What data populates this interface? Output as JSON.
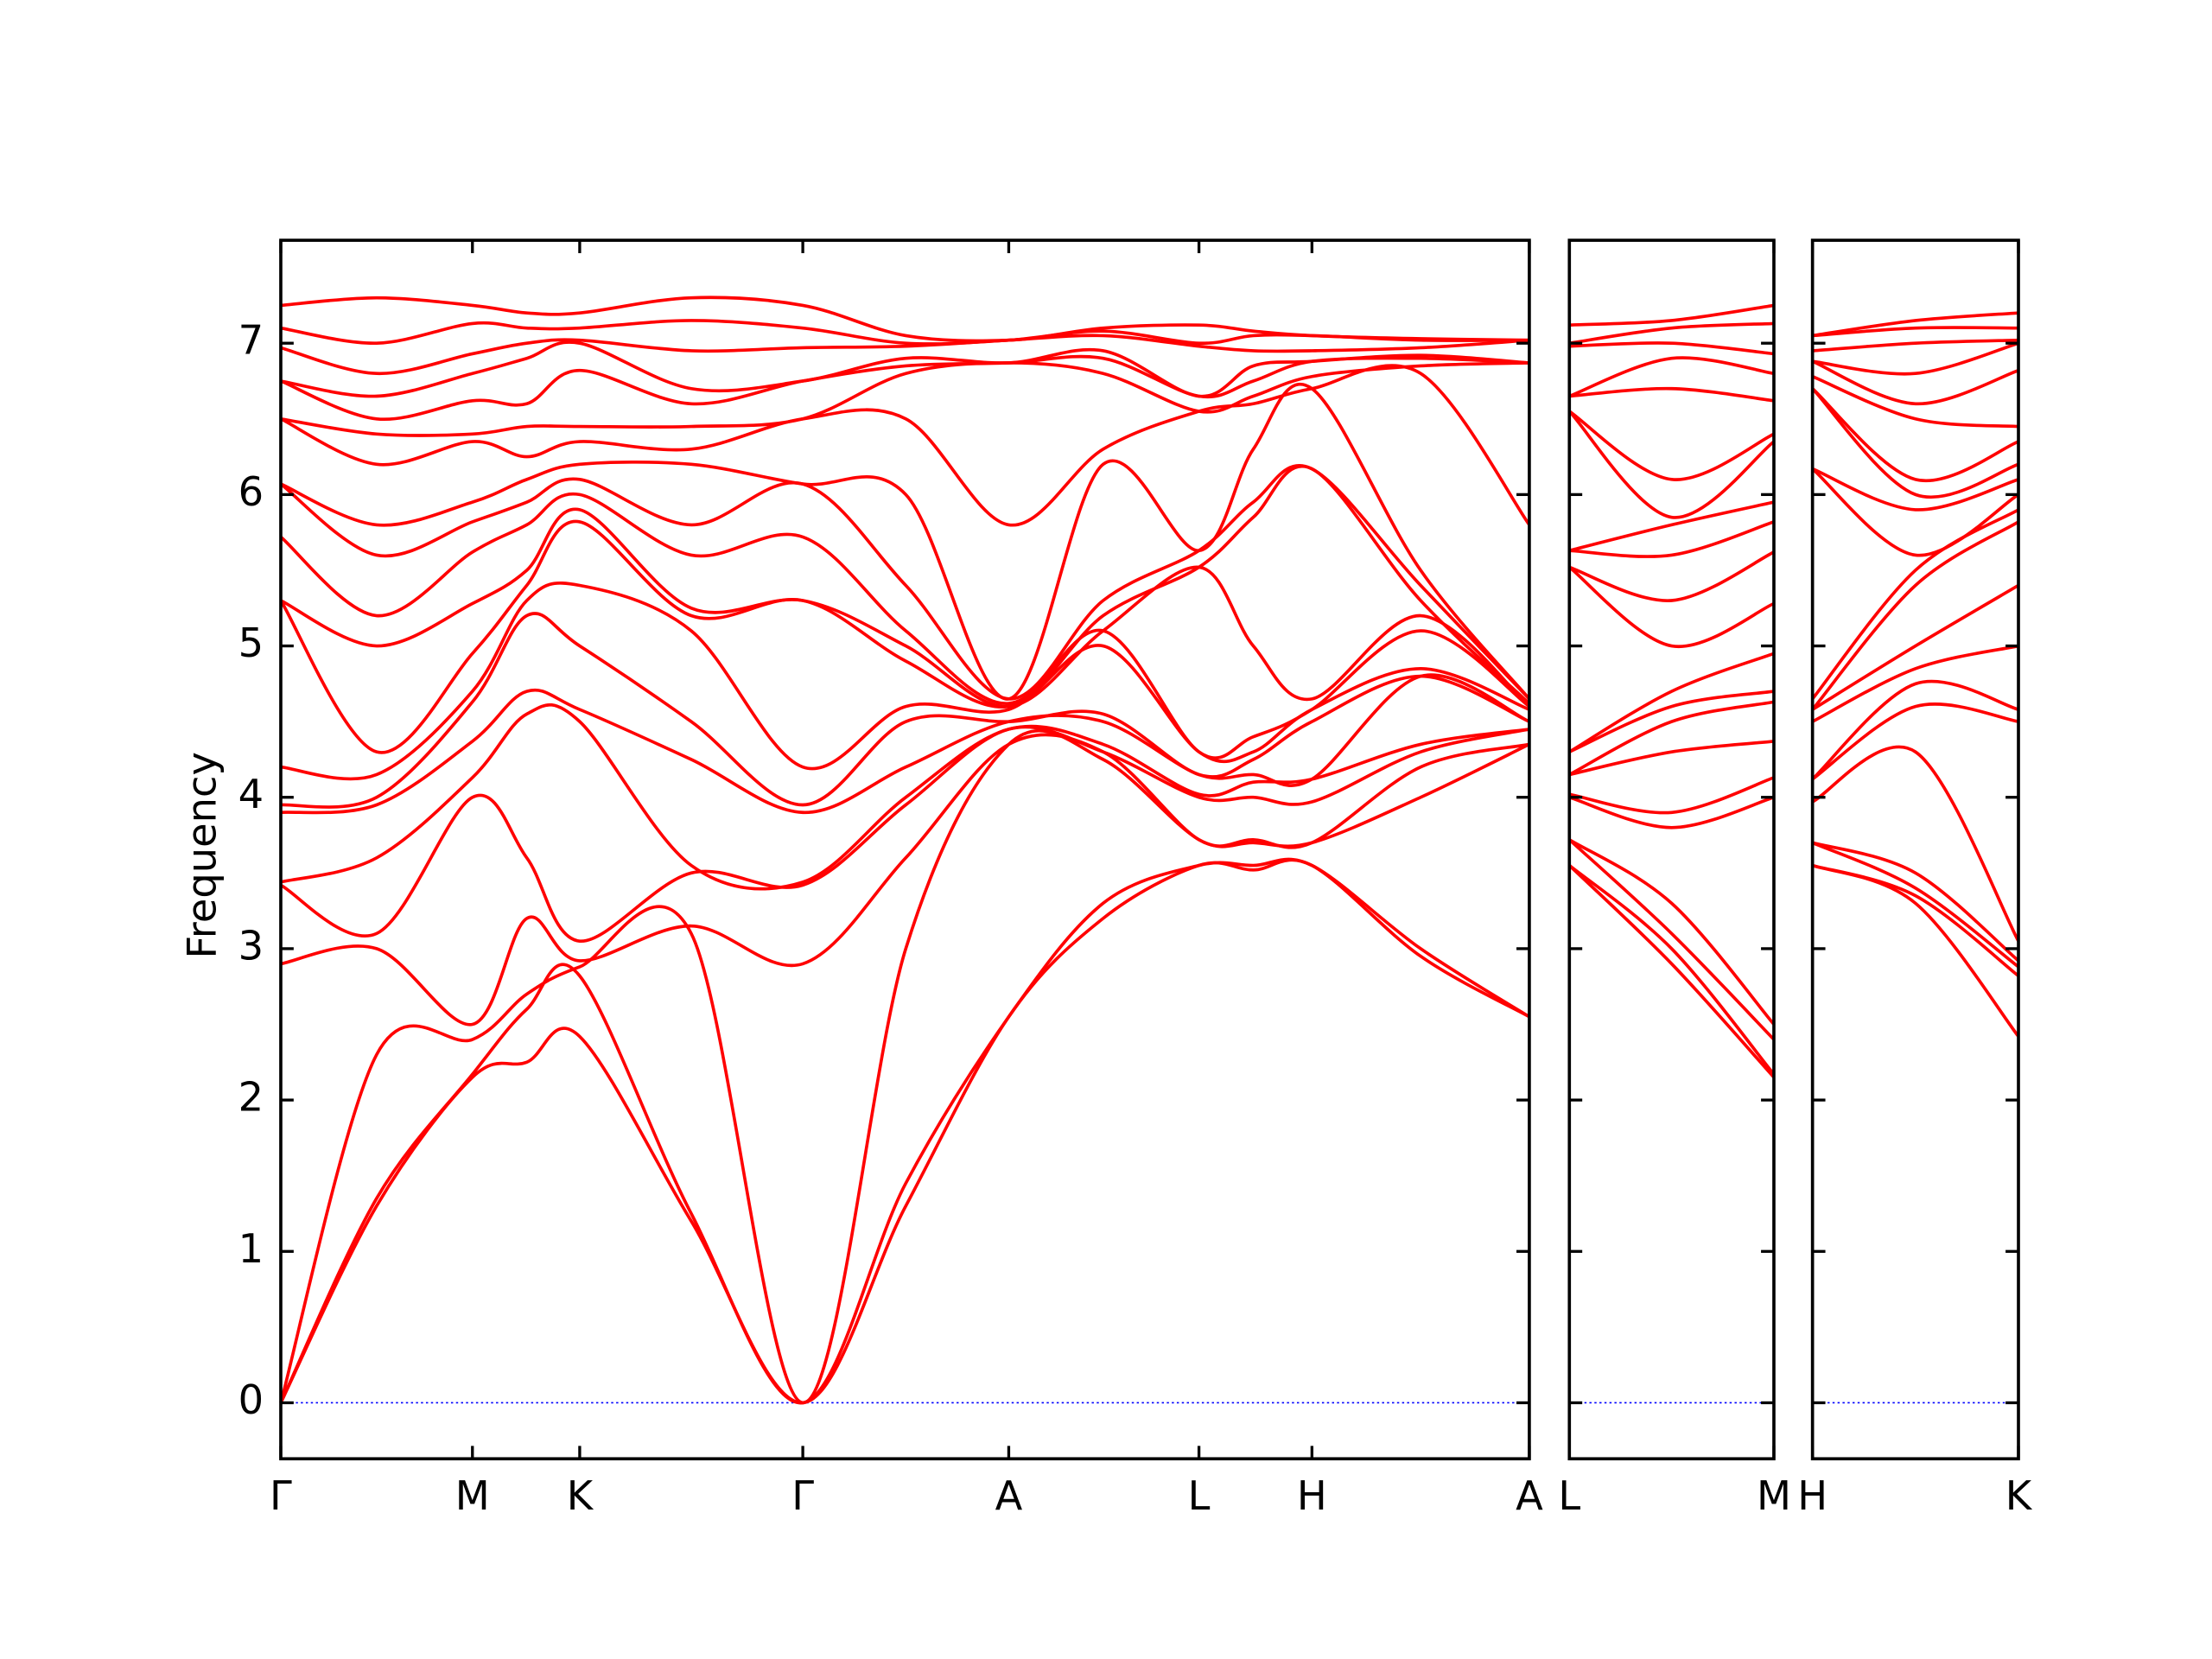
{
  "chart_data": [
    {
      "type": "line",
      "ylabel": "Frequency",
      "color": "#ff0000",
      "zero_line_color": "#0000ff",
      "x": [
        0,
        0.67,
        1.34,
        1.72,
        2.09,
        2.87,
        3.65,
        4.37,
        5.09,
        5.75,
        6.42,
        6.8,
        7.21,
        7.97,
        8.73
      ],
      "xlim": [
        0,
        8.73
      ],
      "xticks": [
        {
          "value": 0,
          "label": "Γ"
        },
        {
          "value": 1.34,
          "label": "M"
        },
        {
          "value": 2.09,
          "label": "K"
        },
        {
          "value": 3.65,
          "label": "Γ"
        },
        {
          "value": 5.09,
          "label": "A"
        },
        {
          "value": 6.42,
          "label": "L"
        },
        {
          "value": 7.21,
          "label": "H"
        },
        {
          "value": 8.73,
          "label": "A"
        }
      ],
      "ylim": [
        -0.37,
        7.68
      ],
      "yticks": [
        0,
        1,
        2,
        3,
        4,
        5,
        6,
        7
      ],
      "series": [
        {
          "values": [
            0,
            1.3,
            2.15,
            2.25,
            2.42,
            1.2,
            0,
            1.3,
            2.55,
            3.2,
            3.55,
            3.52,
            3.55,
            2.95,
            2.55
          ]
        },
        {
          "values": [
            0,
            1.35,
            2.17,
            2.6,
            2.82,
            1.25,
            0,
            1.45,
            2.55,
            3.3,
            3.55,
            3.55,
            3.55,
            3.0,
            2.55
          ]
        },
        {
          "values": [
            0,
            2.3,
            2.4,
            2.7,
            2.88,
            3.1,
            0,
            3.0,
            4.35,
            4.25,
            3.72,
            3.7,
            3.7,
            4.0,
            4.35
          ]
        },
        {
          "values": [
            2.9,
            3.0,
            2.5,
            3.2,
            2.92,
            3.15,
            2.9,
            3.6,
            4.35,
            4.3,
            3.72,
            3.72,
            3.7,
            4.2,
            4.35
          ]
        },
        {
          "values": [
            3.42,
            3.1,
            4.0,
            3.6,
            3.05,
            3.5,
            3.42,
            3.95,
            4.45,
            4.3,
            4.0,
            4.0,
            3.97,
            4.3,
            4.45
          ]
        },
        {
          "values": [
            3.44,
            3.6,
            4.13,
            4.55,
            4.5,
            3.55,
            3.44,
            4.0,
            4.45,
            4.35,
            4.02,
            4.1,
            4.12,
            4.35,
            4.45
          ]
        },
        {
          "values": [
            3.9,
            3.95,
            4.37,
            4.7,
            4.58,
            4.25,
            3.9,
            4.2,
            4.5,
            4.5,
            4.15,
            4.15,
            4.12,
            4.8,
            4.5
          ]
        },
        {
          "values": [
            3.95,
            4.0,
            4.63,
            5.2,
            5.0,
            4.5,
            3.95,
            4.5,
            4.5,
            4.55,
            4.15,
            4.25,
            4.5,
            4.8,
            4.5
          ]
        },
        {
          "values": [
            4.2,
            4.15,
            4.7,
            5.3,
            5.4,
            5.1,
            4.2,
            4.6,
            4.58,
            5.0,
            4.3,
            4.3,
            4.58,
            4.85,
            4.58
          ]
        },
        {
          "values": [
            5.3,
            4.3,
            4.95,
            5.4,
            5.82,
            5.2,
            5.3,
            4.9,
            4.6,
            5.1,
            4.3,
            4.4,
            4.58,
            5.1,
            4.6
          ]
        },
        {
          "values": [
            5.3,
            5.0,
            5.28,
            5.5,
            5.9,
            5.25,
            5.3,
            5.0,
            4.6,
            5.1,
            5.52,
            5.0,
            4.65,
            5.2,
            4.6
          ]
        },
        {
          "values": [
            5.72,
            5.2,
            5.62,
            5.8,
            6.0,
            5.6,
            5.72,
            5.1,
            4.62,
            5.2,
            5.52,
            5.85,
            6.17,
            5.3,
            4.62
          ]
        },
        {
          "values": [
            6.07,
            5.6,
            5.82,
            5.95,
            6.1,
            5.8,
            6.07,
            5.4,
            4.65,
            5.3,
            5.63,
            5.95,
            6.17,
            5.4,
            4.65
          ]
        },
        {
          "values": [
            6.07,
            5.8,
            5.95,
            6.1,
            6.2,
            6.2,
            6.07,
            6.0,
            4.65,
            6.2,
            5.63,
            6.3,
            6.7,
            5.5,
            4.65
          ]
        },
        {
          "values": [
            6.5,
            6.2,
            6.35,
            6.25,
            6.35,
            6.3,
            6.5,
            6.5,
            5.8,
            6.3,
            6.55,
            6.6,
            6.7,
            6.8,
            5.8
          ]
        },
        {
          "values": [
            6.5,
            6.4,
            6.4,
            6.45,
            6.45,
            6.45,
            6.5,
            6.8,
            6.87,
            6.8,
            6.55,
            6.65,
            6.78,
            6.85,
            6.87
          ]
        },
        {
          "values": [
            6.75,
            6.5,
            6.62,
            6.6,
            6.82,
            6.6,
            6.75,
            6.85,
            6.87,
            6.9,
            6.65,
            6.75,
            6.88,
            6.9,
            6.87
          ]
        },
        {
          "values": [
            6.75,
            6.65,
            6.8,
            6.9,
            7.0,
            6.7,
            6.75,
            6.9,
            6.87,
            6.95,
            6.65,
            6.85,
            6.88,
            6.92,
            6.87
          ]
        },
        {
          "values": [
            6.97,
            6.8,
            6.93,
            7.0,
            7.02,
            6.95,
            6.97,
            6.98,
            7.02,
            7.05,
            6.98,
            6.95,
            6.95,
            6.97,
            7.02
          ]
        },
        {
          "values": [
            7.1,
            7.0,
            7.13,
            7.1,
            7.1,
            7.15,
            7.1,
            7.0,
            7.02,
            7.08,
            7.0,
            7.05,
            7.05,
            7.02,
            7.02
          ]
        },
        {
          "values": [
            7.25,
            7.3,
            7.25,
            7.2,
            7.2,
            7.3,
            7.25,
            7.05,
            7.02,
            7.1,
            7.12,
            7.08,
            7.05,
            7.03,
            7.02
          ]
        }
      ]
    },
    {
      "type": "line",
      "color": "#ff0000",
      "zero_line_color": "#0000ff",
      "x": [
        0,
        0.715,
        1.43
      ],
      "xlim": [
        0,
        1.43
      ],
      "xticks": [
        {
          "value": 0,
          "label": "L"
        },
        {
          "value": 1.43,
          "label": "M"
        }
      ],
      "ylim": [
        -0.37,
        7.68
      ],
      "yticks": [
        0,
        1,
        2,
        3,
        4,
        5,
        6,
        7
      ],
      "series": [
        {
          "values": [
            3.55,
            2.9,
            2.15
          ]
        },
        {
          "values": [
            3.55,
            3.0,
            2.17
          ]
        },
        {
          "values": [
            3.72,
            3.1,
            2.4
          ]
        },
        {
          "values": [
            3.72,
            3.3,
            2.5
          ]
        },
        {
          "values": [
            4.0,
            3.8,
            4.0
          ]
        },
        {
          "values": [
            4.02,
            3.9,
            4.13
          ]
        },
        {
          "values": [
            4.15,
            4.3,
            4.37
          ]
        },
        {
          "values": [
            4.15,
            4.5,
            4.63
          ]
        },
        {
          "values": [
            4.3,
            4.6,
            4.7
          ]
        },
        {
          "values": [
            4.3,
            4.7,
            4.95
          ]
        },
        {
          "values": [
            5.52,
            5.0,
            5.28
          ]
        },
        {
          "values": [
            5.52,
            5.3,
            5.62
          ]
        },
        {
          "values": [
            5.63,
            5.6,
            5.82
          ]
        },
        {
          "values": [
            5.63,
            5.8,
            5.95
          ]
        },
        {
          "values": [
            6.55,
            5.85,
            6.35
          ]
        },
        {
          "values": [
            6.55,
            6.1,
            6.4
          ]
        },
        {
          "values": [
            6.65,
            6.7,
            6.62
          ]
        },
        {
          "values": [
            6.65,
            6.9,
            6.8
          ]
        },
        {
          "values": [
            6.98,
            7.0,
            6.93
          ]
        },
        {
          "values": [
            7.0,
            7.1,
            7.13
          ]
        },
        {
          "values": [
            7.12,
            7.15,
            7.25
          ]
        }
      ]
    },
    {
      "type": "line",
      "color": "#ff0000",
      "zero_line_color": "#0000ff",
      "x": [
        0,
        0.72,
        1.44
      ],
      "xlim": [
        0,
        1.44
      ],
      "xticks": [
        {
          "value": 0,
          "label": "H"
        },
        {
          "value": 1.44,
          "label": "K"
        }
      ],
      "ylim": [
        -0.37,
        7.68
      ],
      "yticks": [
        0,
        1,
        2,
        3,
        4,
        5,
        6,
        7
      ],
      "series": [
        {
          "values": [
            3.55,
            3.3,
            2.42
          ]
        },
        {
          "values": [
            3.55,
            3.35,
            2.82
          ]
        },
        {
          "values": [
            3.7,
            3.4,
            2.88
          ]
        },
        {
          "values": [
            3.7,
            3.5,
            2.92
          ]
        },
        {
          "values": [
            3.97,
            4.3,
            3.05
          ]
        },
        {
          "values": [
            4.12,
            4.6,
            4.5
          ]
        },
        {
          "values": [
            4.12,
            4.75,
            4.58
          ]
        },
        {
          "values": [
            4.5,
            4.85,
            5.0
          ]
        },
        {
          "values": [
            4.58,
            5.0,
            5.4
          ]
        },
        {
          "values": [
            4.58,
            5.4,
            5.82
          ]
        },
        {
          "values": [
            4.65,
            5.5,
            5.9
          ]
        },
        {
          "values": [
            6.17,
            5.6,
            6.0
          ]
        },
        {
          "values": [
            6.17,
            5.9,
            6.1
          ]
        },
        {
          "values": [
            6.7,
            6.0,
            6.2
          ]
        },
        {
          "values": [
            6.7,
            6.1,
            6.35
          ]
        },
        {
          "values": [
            6.78,
            6.5,
            6.45
          ]
        },
        {
          "values": [
            6.88,
            6.6,
            6.82
          ]
        },
        {
          "values": [
            6.88,
            6.8,
            7.0
          ]
        },
        {
          "values": [
            6.95,
            7.0,
            7.02
          ]
        },
        {
          "values": [
            7.05,
            7.1,
            7.1
          ]
        },
        {
          "values": [
            7.05,
            7.15,
            7.2
          ]
        }
      ]
    }
  ]
}
